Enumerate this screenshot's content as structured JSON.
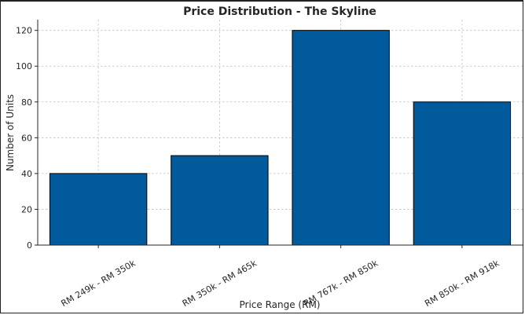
{
  "chart_data": {
    "type": "bar",
    "title": "Price Distribution - The Skyline",
    "xlabel": "Price Range (RM)",
    "ylabel": "Number of Units",
    "categories": [
      "RM 249k - RM 350k",
      "RM 350k - RM 465k",
      "RM 767k - RM 850k",
      "RM 850k - RM 918k"
    ],
    "values": [
      40,
      50,
      120,
      80
    ],
    "ylim": [
      0,
      126
    ],
    "yticks": [
      0,
      20,
      40,
      60,
      80,
      100,
      120
    ],
    "grid": true,
    "bar_color": "#005a9c"
  }
}
